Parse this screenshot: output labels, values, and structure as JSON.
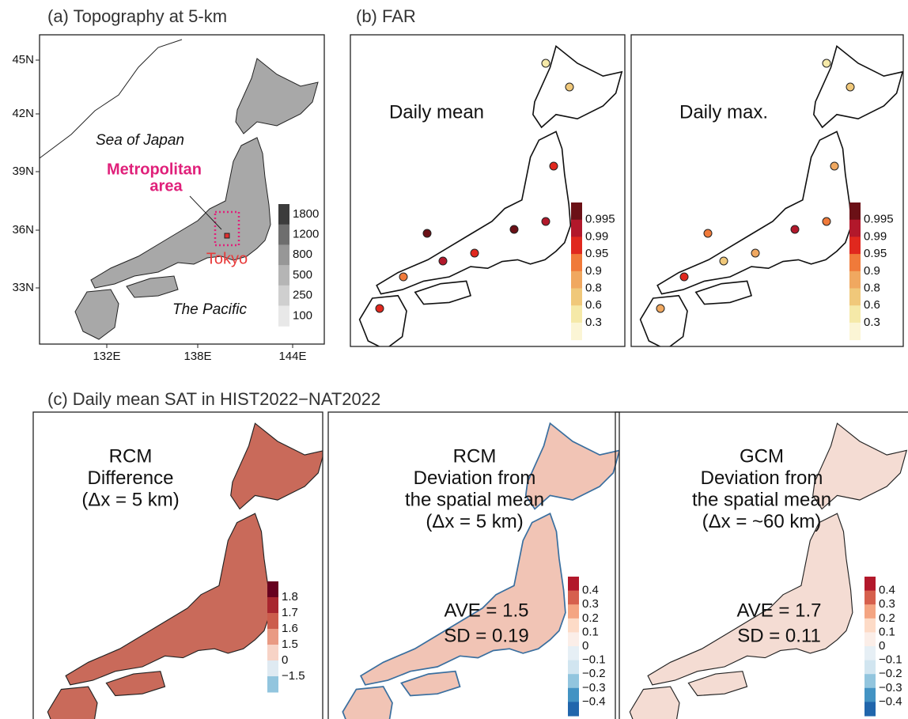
{
  "panel_a": {
    "title": "(a) Topography at 5-km",
    "lat_labels": [
      "45N",
      "42N",
      "39N",
      "36N",
      "33N"
    ],
    "lon_labels": [
      "132E",
      "138E",
      "144E"
    ],
    "sea_label": "Sea of Japan",
    "ocean_label": "The Pacific",
    "metro_label": [
      "Metropolitan",
      "area"
    ],
    "city_label": "Tokyo",
    "colorbar": {
      "labels": [
        "1800",
        "1200",
        "800",
        "500",
        "250",
        "100"
      ],
      "colors": [
        "#3c3c3c",
        "#6e6e6e",
        "#979797",
        "#b5b5b5",
        "#cfcfcf",
        "#e8e8e8"
      ]
    }
  },
  "panel_b": {
    "title": "(b) FAR",
    "maps": [
      {
        "label": "Daily mean",
        "colorbar": {
          "labels": [
            "0.995",
            "0.99",
            "0.95",
            "0.9",
            "0.8",
            "0.6",
            "0.3"
          ],
          "colors": [
            "#6b1016",
            "#b2182b",
            "#e0281e",
            "#f07a3a",
            "#f0a860",
            "#f0c87a",
            "#f5e9a8",
            "#fbf5d5"
          ]
        }
      },
      {
        "label": "Daily max.",
        "colorbar": {
          "labels": [
            "0.995",
            "0.99",
            "0.95",
            "0.9",
            "0.8",
            "0.6",
            "0.3"
          ],
          "colors": [
            "#6b1016",
            "#b2182b",
            "#e0281e",
            "#f07a3a",
            "#f0a860",
            "#f0c87a",
            "#f5e9a8",
            "#fbf5d5"
          ]
        }
      }
    ]
  },
  "panel_c": {
    "title": "(c) Daily mean SAT in HIST2022−NAT2022",
    "maps": [
      {
        "label": [
          "RCM",
          "Difference",
          "(Δx = 5 km)"
        ],
        "colorbar": {
          "labels": [
            "1.8",
            "1.7",
            "1.6",
            "1.5",
            "0",
            "−1.5"
          ],
          "colors": [
            "#67001f",
            "#a8262f",
            "#cc5d4c",
            "#e99a83",
            "#f7d3c6",
            "#dfeaf2",
            "#92c5de"
          ]
        }
      },
      {
        "label": [
          "RCM",
          "Deviation from",
          "the spatial mean",
          "(Δx = 5 km)"
        ],
        "stats": [
          "AVE = 1.5",
          "SD = 0.19"
        ],
        "colorbar": {
          "labels": [
            "0.4",
            "0.3",
            "0.2",
            "0.1",
            "0",
            "−0.1",
            "−0.2",
            "−0.3",
            "−0.4"
          ],
          "colors": [
            "#b2182b",
            "#d6604d",
            "#f4a582",
            "#fddbc7",
            "#fbeee8",
            "#e6eff5",
            "#d1e5f0",
            "#92c5de",
            "#4393c3",
            "#2166ac"
          ]
        }
      },
      {
        "label": [
          "GCM",
          "Deviation from",
          "the spatial mean",
          "(Δx = ~60 km)"
        ],
        "stats": [
          "AVE = 1.7",
          "SD = 0.11"
        ],
        "colorbar": {
          "labels": [
            "0.4",
            "0.3",
            "0.2",
            "0.1",
            "0",
            "−0.1",
            "−0.2",
            "−0.3",
            "−0.4"
          ],
          "colors": [
            "#b2182b",
            "#d6604d",
            "#f4a582",
            "#fddbc7",
            "#fbeee8",
            "#e6eff5",
            "#d1e5f0",
            "#92c5de",
            "#4393c3",
            "#2166ac"
          ]
        }
      }
    ]
  }
}
